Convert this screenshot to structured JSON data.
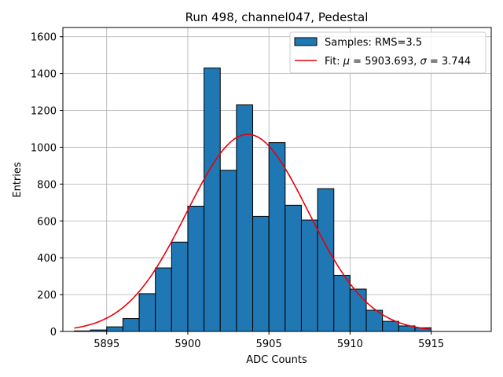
{
  "chart_data": {
    "type": "histogram",
    "title": "Run 498, channel047, Pedestal",
    "xlabel": "ADC Counts",
    "ylabel": "Entries",
    "xlim": [
      5892.3,
      5918.7
    ],
    "ylim": [
      0,
      1650
    ],
    "grid": true,
    "legend_position": "upper right",
    "xticks": [
      5895,
      5900,
      5905,
      5910,
      5915
    ],
    "yticks": [
      0,
      200,
      400,
      600,
      800,
      1000,
      1200,
      1400,
      1600
    ],
    "bin_width": 1,
    "bins": [
      {
        "left": 5893,
        "count": 3
      },
      {
        "left": 5894,
        "count": 8
      },
      {
        "left": 5895,
        "count": 25
      },
      {
        "left": 5896,
        "count": 70
      },
      {
        "left": 5897,
        "count": 205
      },
      {
        "left": 5898,
        "count": 345
      },
      {
        "left": 5899,
        "count": 485
      },
      {
        "left": 5900,
        "count": 680
      },
      {
        "left": 5901,
        "count": 1430
      },
      {
        "left": 5902,
        "count": 875
      },
      {
        "left": 5903,
        "count": 1230
      },
      {
        "left": 5904,
        "count": 625
      },
      {
        "left": 5905,
        "count": 1025
      },
      {
        "left": 5906,
        "count": 685
      },
      {
        "left": 5907,
        "count": 605
      },
      {
        "left": 5908,
        "count": 775
      },
      {
        "left": 5909,
        "count": 305
      },
      {
        "left": 5910,
        "count": 230
      },
      {
        "left": 5911,
        "count": 115
      },
      {
        "left": 5912,
        "count": 55
      },
      {
        "left": 5913,
        "count": 30
      },
      {
        "left": 5914,
        "count": 20
      }
    ],
    "fit": {
      "type": "gaussian",
      "mu": 5903.693,
      "sigma": 3.744,
      "amplitude": 1070,
      "x_range": [
        5893,
        5915
      ]
    },
    "legend": {
      "histogram_label": "Samples: RMS=3.5",
      "fit_label_prefix": "Fit: ",
      "fit_label_mu_symbol": "μ",
      "fit_label_mu_value": " = 5903.693, ",
      "fit_label_sigma_symbol": "σ",
      "fit_label_sigma_value": " = 3.744"
    },
    "colors": {
      "bar_fill": "#1f77b4",
      "bar_edge": "#000000",
      "fit_line": "#e8000b",
      "grid": "#b0b0b0"
    }
  }
}
